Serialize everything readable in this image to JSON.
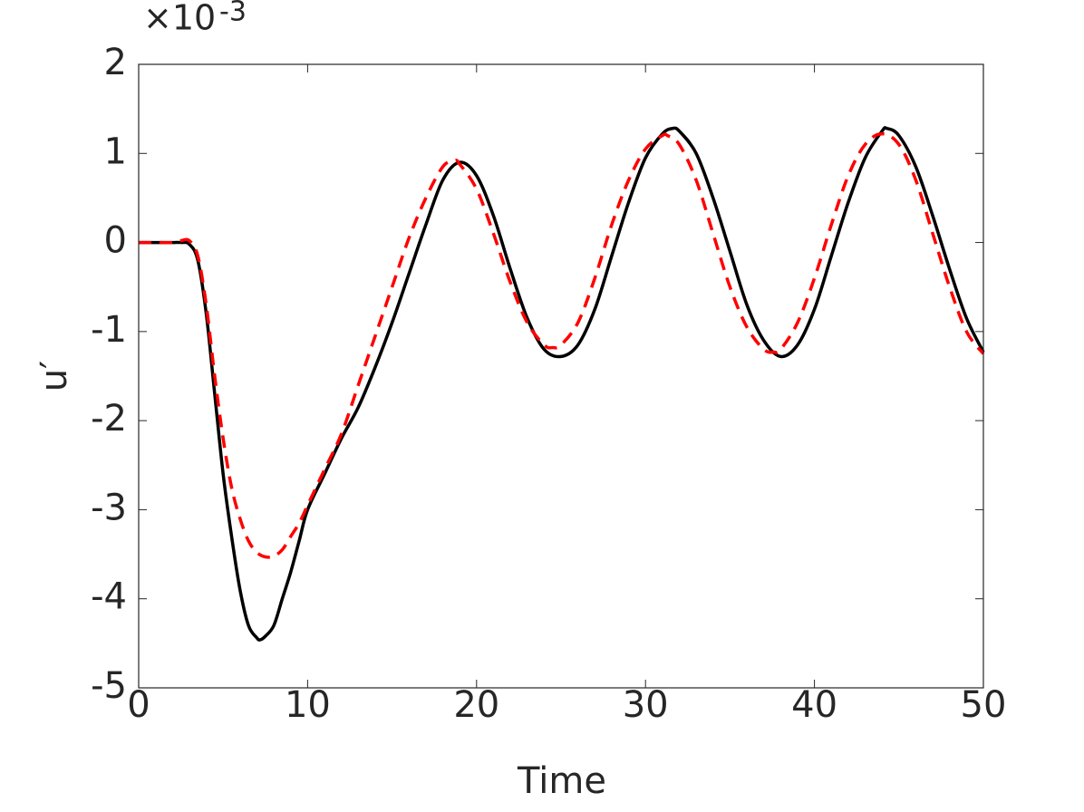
{
  "chart_data": {
    "type": "line",
    "xlabel": "Time",
    "ylabel": "u′",
    "y_exponent": {
      "base": "×10",
      "power": "-3"
    },
    "xlim": [
      0,
      50
    ],
    "xticks": [
      0,
      10,
      20,
      30,
      40,
      50
    ],
    "ylim": [
      -5,
      2
    ],
    "yticks": [
      2,
      1,
      0,
      -1,
      -2,
      -3,
      -4,
      -5
    ],
    "box": true,
    "series": [
      {
        "color": "#000000",
        "dash": "solid",
        "x": [
          0,
          1,
          2,
          2.5,
          3,
          3.5,
          4,
          4.5,
          5,
          5.5,
          6,
          6.5,
          7,
          7.2,
          7.5,
          8,
          8.5,
          9,
          9.5,
          10,
          11,
          12,
          13,
          14,
          15,
          16,
          17,
          18,
          19,
          20,
          21,
          22,
          23,
          24,
          25,
          26,
          27,
          28,
          29,
          30,
          31,
          31.6,
          32,
          33,
          34,
          35,
          36,
          37,
          38,
          39,
          40,
          41,
          42,
          43,
          44,
          44.3,
          45,
          46,
          47,
          48,
          49,
          50
        ],
        "values": [
          0,
          0,
          0,
          0,
          -0.02,
          -0.2,
          -0.8,
          -1.7,
          -2.6,
          -3.3,
          -3.9,
          -4.3,
          -4.44,
          -4.46,
          -4.42,
          -4.3,
          -4.0,
          -3.7,
          -3.35,
          -3.0,
          -2.6,
          -2.2,
          -1.85,
          -1.4,
          -0.9,
          -0.35,
          0.2,
          0.7,
          0.9,
          0.75,
          0.3,
          -0.3,
          -0.85,
          -1.2,
          -1.28,
          -1.15,
          -0.75,
          -0.15,
          0.45,
          0.95,
          1.22,
          1.28,
          1.25,
          1.0,
          0.5,
          -0.1,
          -0.7,
          -1.1,
          -1.28,
          -1.15,
          -0.75,
          -0.15,
          0.45,
          0.95,
          1.25,
          1.28,
          1.2,
          0.85,
          0.3,
          -0.3,
          -0.85,
          -1.23
        ]
      },
      {
        "color": "#ff0000",
        "dash": "dashed",
        "x": [
          0,
          1,
          2,
          2.5,
          3,
          3.5,
          4,
          4.5,
          5,
          5.5,
          6,
          6.5,
          7,
          7.5,
          8,
          8.5,
          9,
          9.5,
          10,
          11,
          12,
          13,
          14,
          15,
          16,
          17,
          18,
          18.7,
          19,
          20,
          21,
          22,
          23,
          24,
          24.5,
          25,
          26,
          27,
          28,
          29,
          30,
          31,
          31.3,
          32,
          33,
          34,
          35,
          36,
          37,
          37.6,
          38,
          39,
          40,
          41,
          42,
          43,
          44,
          45,
          46,
          47,
          48,
          49,
          50
        ],
        "values": [
          0,
          0,
          0,
          0.02,
          0.02,
          -0.15,
          -0.7,
          -1.5,
          -2.2,
          -2.75,
          -3.1,
          -3.35,
          -3.48,
          -3.53,
          -3.52,
          -3.45,
          -3.3,
          -3.15,
          -2.95,
          -2.55,
          -2.15,
          -1.6,
          -1.05,
          -0.5,
          0.05,
          0.5,
          0.85,
          0.92,
          0.88,
          0.6,
          0.1,
          -0.45,
          -0.9,
          -1.15,
          -1.18,
          -1.15,
          -0.9,
          -0.4,
          0.2,
          0.7,
          1.05,
          1.2,
          1.2,
          1.1,
          0.7,
          0.1,
          -0.5,
          -0.95,
          -1.2,
          -1.23,
          -1.2,
          -0.9,
          -0.4,
          0.2,
          0.75,
          1.1,
          1.22,
          1.1,
          0.7,
          0.1,
          -0.5,
          -1.0,
          -1.25
        ]
      }
    ]
  }
}
